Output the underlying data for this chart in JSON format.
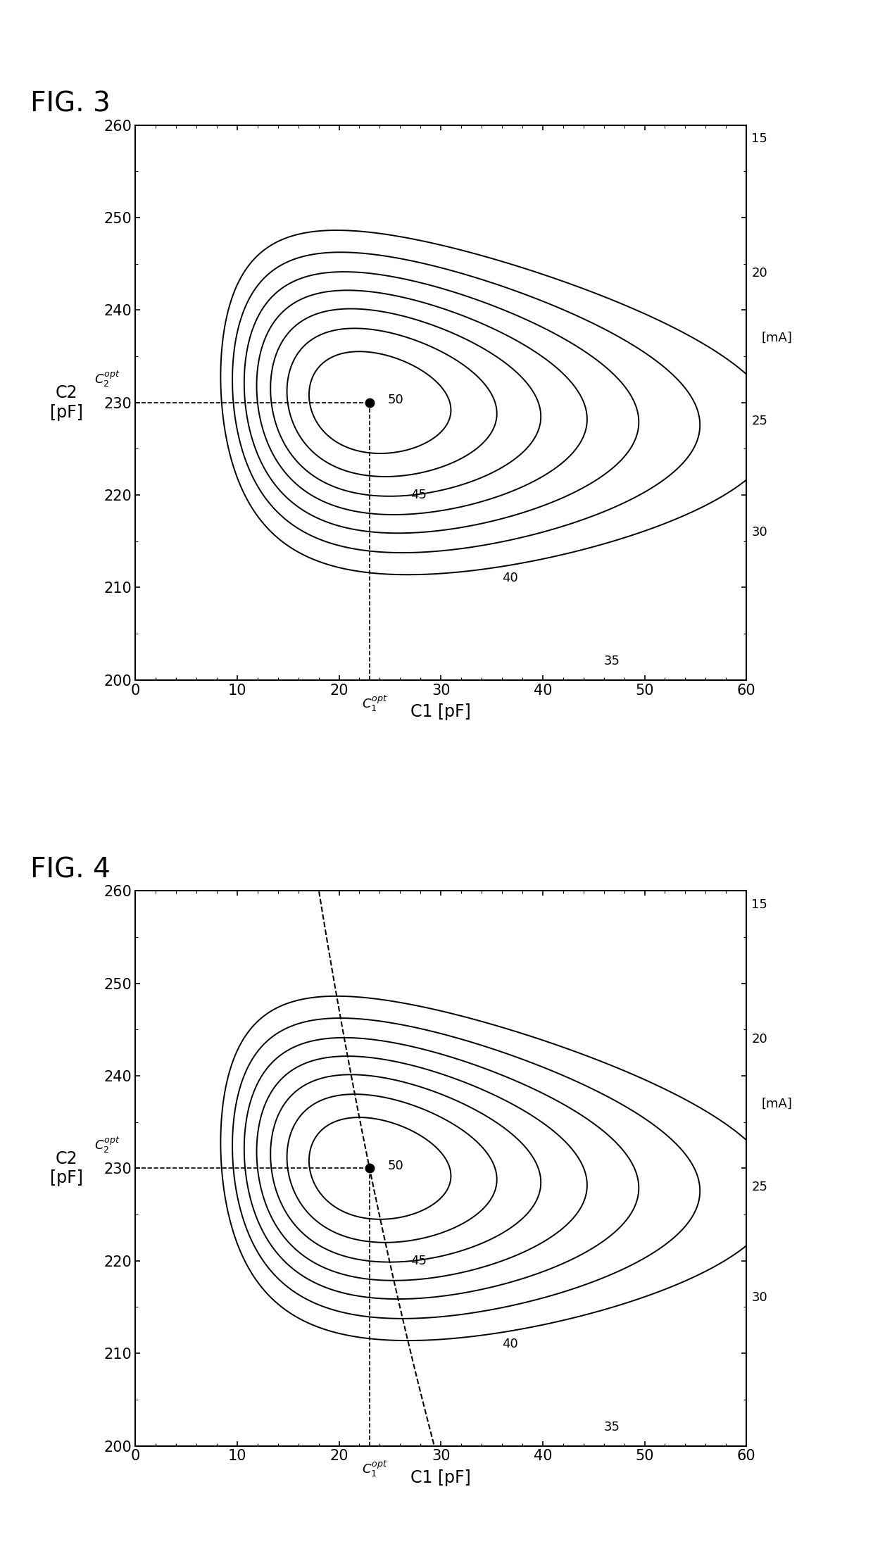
{
  "fig3_title": "FIG. 3",
  "fig4_title": "FIG. 4",
  "xlabel": "C1 [pF]",
  "ylabel_line1": "C2",
  "ylabel_line2": "[pF]",
  "xlim": [
    0,
    60
  ],
  "ylim": [
    200,
    260
  ],
  "xticks": [
    0,
    10,
    20,
    30,
    40,
    50,
    60
  ],
  "yticks": [
    200,
    210,
    220,
    230,
    240,
    250,
    260
  ],
  "opt_c1": 23,
  "opt_c2": 230,
  "contour_levels": [
    15,
    20,
    25,
    30,
    35,
    40,
    45,
    50
  ],
  "unit_label": "[mA]",
  "background_color": "#ffffff",
  "line_color": "#000000"
}
